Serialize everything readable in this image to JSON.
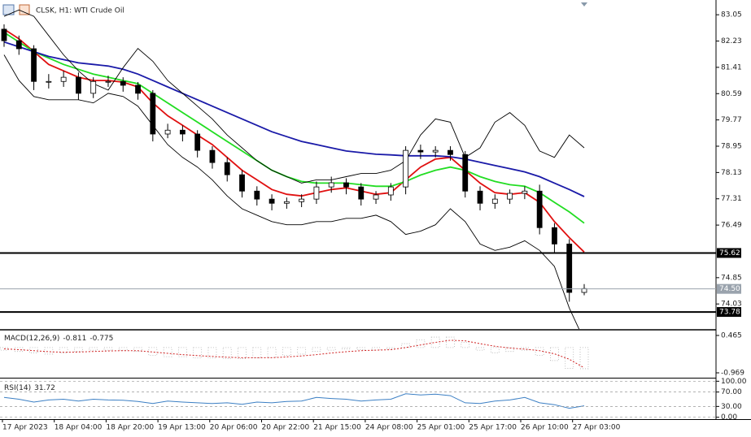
{
  "chart_data": [
    {
      "type": "candlestick",
      "title": "CLSK, H1:  WTI Crude Oil",
      "x_labels": [
        "17 Apr 2023",
        "18 Apr 04:00",
        "18 Apr 20:00",
        "19 Apr 13:00",
        "20 Apr 06:00",
        "20 Apr 22:00",
        "21 Apr 15:00",
        "24 Apr 08:00",
        "25 Apr 01:00",
        "25 Apr 17:00",
        "26 Apr 10:00",
        "27 Apr 03:00"
      ],
      "open": [
        82.6,
        82.24,
        81.99,
        80.97,
        80.97,
        81.1,
        80.6,
        80.97,
        80.97,
        80.85,
        80.6,
        79.33,
        79.45,
        79.33,
        78.82,
        78.44,
        78.06,
        77.55,
        77.3,
        77.17,
        77.22,
        77.3,
        77.68,
        77.81,
        77.68,
        77.3,
        77.43,
        77.68,
        78.82,
        78.77,
        78.82,
        78.69,
        77.55,
        77.17,
        77.3,
        77.48,
        77.55,
        76.41,
        75.9,
        74.39
      ],
      "high": [
        82.75,
        82.4,
        82.1,
        81.2,
        81.3,
        81.25,
        81.1,
        81.15,
        81.1,
        80.95,
        80.7,
        79.65,
        79.6,
        79.45,
        78.95,
        78.6,
        78.2,
        77.7,
        77.45,
        77.35,
        77.45,
        77.85,
        78.0,
        77.95,
        77.8,
        77.55,
        77.8,
        78.95,
        79.0,
        78.95,
        78.95,
        78.8,
        77.7,
        77.45,
        77.6,
        77.7,
        77.75,
        76.55,
        76.05,
        74.65
      ],
      "low": [
        82.05,
        81.8,
        80.7,
        80.75,
        80.8,
        80.4,
        80.45,
        80.8,
        80.65,
        80.4,
        79.1,
        79.2,
        79.1,
        78.6,
        78.25,
        77.85,
        77.35,
        77.1,
        76.95,
        77.0,
        77.05,
        77.15,
        77.5,
        77.45,
        77.1,
        77.15,
        77.25,
        77.45,
        78.55,
        78.6,
        78.5,
        77.35,
        76.95,
        77.0,
        77.15,
        77.3,
        76.2,
        75.6,
        74.1,
        74.3
      ],
      "close": [
        82.24,
        81.99,
        80.97,
        80.97,
        81.1,
        80.6,
        80.97,
        80.97,
        80.85,
        80.6,
        79.33,
        79.45,
        79.33,
        78.82,
        78.44,
        78.06,
        77.55,
        77.3,
        77.17,
        77.22,
        77.3,
        77.68,
        77.81,
        77.68,
        77.3,
        77.43,
        77.68,
        78.82,
        78.77,
        78.82,
        78.69,
        77.55,
        77.17,
        77.3,
        77.48,
        77.55,
        76.41,
        75.9,
        74.39,
        74.51
      ],
      "up_color": "#ffffff",
      "down_color": "#000000",
      "series": [
        {
          "color": "#e01010",
          "values": [
            82.6,
            82.3,
            81.9,
            81.5,
            81.3,
            81.1,
            81.0,
            81.0,
            80.95,
            80.8,
            80.3,
            79.9,
            79.6,
            79.3,
            79.0,
            78.6,
            78.2,
            77.9,
            77.6,
            77.45,
            77.4,
            77.5,
            77.6,
            77.65,
            77.55,
            77.45,
            77.5,
            77.9,
            78.3,
            78.55,
            78.6,
            78.2,
            77.8,
            77.5,
            77.45,
            77.5,
            77.2,
            76.6,
            76.1,
            75.65
          ]
        },
        {
          "color": "#22dd22",
          "values": [
            82.5,
            82.2,
            81.9,
            81.7,
            81.5,
            81.35,
            81.2,
            81.1,
            81.0,
            80.9,
            80.6,
            80.3,
            80.0,
            79.7,
            79.4,
            79.1,
            78.8,
            78.5,
            78.2,
            78.0,
            77.85,
            77.8,
            77.8,
            77.8,
            77.75,
            77.7,
            77.7,
            77.85,
            78.05,
            78.2,
            78.3,
            78.2,
            78.0,
            77.85,
            77.75,
            77.7,
            77.5,
            77.2,
            76.9,
            76.55
          ]
        },
        {
          "color": "#1a1aa8",
          "values": [
            82.2,
            82.05,
            81.9,
            81.75,
            81.65,
            81.55,
            81.5,
            81.45,
            81.35,
            81.2,
            81.0,
            80.8,
            80.6,
            80.4,
            80.2,
            80.0,
            79.8,
            79.6,
            79.4,
            79.25,
            79.1,
            79.0,
            78.9,
            78.8,
            78.75,
            78.7,
            78.68,
            78.65,
            78.65,
            78.65,
            78.62,
            78.55,
            78.45,
            78.35,
            78.25,
            78.15,
            78.0,
            77.8,
            77.6,
            77.38
          ]
        },
        {
          "color": "#000000",
          "values": [
            83.0,
            83.2,
            83.0,
            82.4,
            81.8,
            81.3,
            80.9,
            80.7,
            81.4,
            82.0,
            81.6,
            81.0,
            80.6,
            80.2,
            79.8,
            79.3,
            78.9,
            78.5,
            78.2,
            78.0,
            77.8,
            77.9,
            77.9,
            78.0,
            78.1,
            78.1,
            78.2,
            78.5,
            79.3,
            79.8,
            79.7,
            78.6,
            78.9,
            79.7,
            80.0,
            79.6,
            78.8,
            78.6,
            79.3,
            78.9
          ]
        },
        {
          "color": "#000000",
          "values": [
            81.8,
            81.0,
            80.5,
            80.4,
            80.4,
            80.4,
            80.3,
            80.6,
            80.5,
            80.2,
            79.6,
            79.0,
            78.6,
            78.3,
            77.9,
            77.4,
            77.0,
            76.8,
            76.6,
            76.5,
            76.5,
            76.6,
            76.6,
            76.7,
            76.7,
            76.8,
            76.6,
            76.2,
            76.3,
            76.5,
            77.0,
            76.6,
            75.9,
            75.7,
            75.8,
            76.0,
            75.7,
            75.2,
            73.9,
            72.9
          ]
        }
      ],
      "ylim": [
        73.25,
        83.51
      ],
      "yticks": [
        83.05,
        82.23,
        81.41,
        80.59,
        79.77,
        78.95,
        78.13,
        77.31,
        76.49,
        74.85,
        74.03
      ],
      "hlines": [
        75.62,
        73.78
      ],
      "last_price": {
        "value": 74.5,
        "label": "74.50"
      },
      "grid": false
    },
    {
      "type": "macd",
      "title": "MACD(12,26,9)",
      "values": [
        -0.1,
        -0.15,
        -0.2,
        -0.25,
        -0.2,
        -0.15,
        -0.1,
        -0.1,
        -0.1,
        -0.15,
        -0.3,
        -0.35,
        -0.35,
        -0.4,
        -0.4,
        -0.42,
        -0.42,
        -0.4,
        -0.38,
        -0.3,
        -0.25,
        -0.15,
        -0.1,
        -0.05,
        -0.08,
        -0.1,
        -0.05,
        0.15,
        0.3,
        0.4,
        0.4,
        0.2,
        -0.1,
        -0.2,
        -0.15,
        -0.1,
        -0.3,
        -0.5,
        -0.8,
        -0.811
      ],
      "signal": [
        -0.05,
        -0.08,
        -0.12,
        -0.16,
        -0.18,
        -0.17,
        -0.15,
        -0.13,
        -0.12,
        -0.12,
        -0.17,
        -0.22,
        -0.27,
        -0.31,
        -0.34,
        -0.37,
        -0.39,
        -0.39,
        -0.39,
        -0.36,
        -0.32,
        -0.27,
        -0.21,
        -0.16,
        -0.12,
        -0.1,
        -0.08,
        0.0,
        0.1,
        0.2,
        0.28,
        0.26,
        0.15,
        0.05,
        -0.02,
        -0.06,
        -0.12,
        -0.24,
        -0.45,
        -0.775
      ],
      "color": "#b0b0b0",
      "signal_color": "#d02020",
      "ylim": [
        -1.094,
        0.62
      ],
      "yticks": [
        0.465,
        -0.969
      ]
    },
    {
      "type": "line",
      "title": "RSI(14)",
      "values": [
        55,
        50,
        42,
        48,
        50,
        45,
        50,
        48,
        47,
        44,
        38,
        45,
        42,
        40,
        38,
        40,
        36,
        42,
        40,
        44,
        45,
        55,
        52,
        50,
        45,
        48,
        50,
        65,
        62,
        64,
        60,
        40,
        38,
        45,
        48,
        55,
        40,
        35,
        25,
        31.72
      ],
      "color": "#3b7fc4",
      "ylim": [
        -3,
        103
      ],
      "yticks": [
        {
          "value": 100,
          "label": "100.00"
        },
        {
          "value": 70,
          "label": "70.00"
        },
        {
          "value": 30,
          "label": "30.00"
        },
        {
          "value": 0,
          "label": "0.00"
        }
      ],
      "grid": true
    }
  ]
}
